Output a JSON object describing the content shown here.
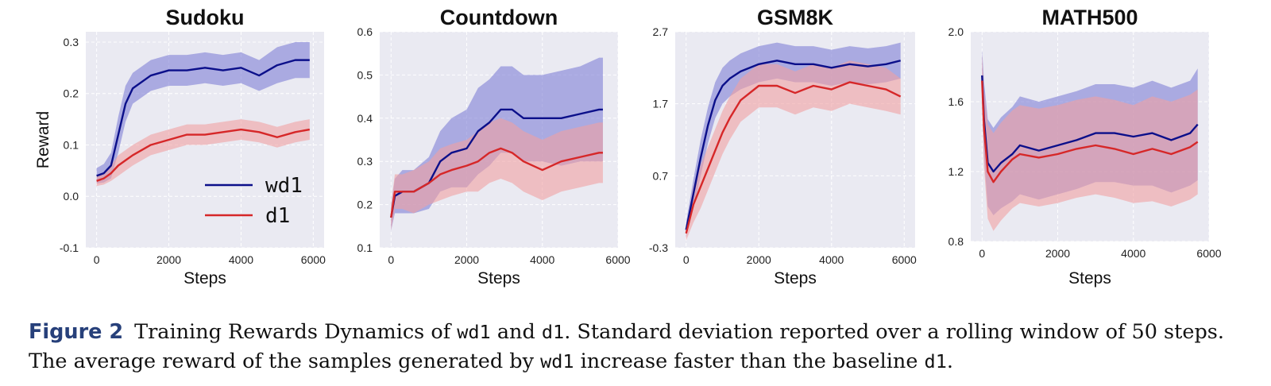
{
  "chart_data": [
    {
      "type": "line",
      "title": "Sudoku",
      "xlabel": "Steps",
      "ylabel": "Reward",
      "xlim": [
        -300,
        6300
      ],
      "ylim": [
        -0.1,
        0.32
      ],
      "xticks": [
        0,
        2000,
        4000,
        6000
      ],
      "xtick_labels": [
        "0",
        "2000",
        "4000",
        "6000"
      ],
      "yticks": [
        -0.1,
        0.0,
        0.1,
        0.2,
        0.3
      ],
      "ytick_labels": [
        "-0.1",
        "0.0",
        "0.1",
        "0.2",
        "0.3"
      ],
      "grid": true,
      "legend": {
        "position": "lower-right",
        "show": true
      },
      "series": [
        {
          "name": "wd1",
          "color": "#0b0f8a",
          "band_color": "#7f7fd6",
          "x": [
            0,
            200,
            400,
            600,
            800,
            1000,
            1500,
            2000,
            2500,
            3000,
            3500,
            4000,
            4500,
            5000,
            5500,
            5900
          ],
          "y": [
            0.04,
            0.045,
            0.06,
            0.12,
            0.18,
            0.21,
            0.235,
            0.245,
            0.245,
            0.25,
            0.245,
            0.25,
            0.235,
            0.255,
            0.265,
            0.265
          ],
          "std": [
            0.015,
            0.018,
            0.025,
            0.035,
            0.035,
            0.03,
            0.03,
            0.03,
            0.03,
            0.03,
            0.03,
            0.03,
            0.03,
            0.035,
            0.035,
            0.035
          ]
        },
        {
          "name": "d1",
          "color": "#d62728",
          "band_color": "#f0a0a2",
          "x": [
            0,
            200,
            400,
            600,
            800,
            1000,
            1500,
            2000,
            2500,
            3000,
            3500,
            4000,
            4500,
            5000,
            5500,
            5900
          ],
          "y": [
            0.03,
            0.035,
            0.045,
            0.06,
            0.07,
            0.08,
            0.1,
            0.11,
            0.12,
            0.12,
            0.125,
            0.13,
            0.125,
            0.115,
            0.125,
            0.13
          ],
          "std": [
            0.01,
            0.012,
            0.015,
            0.02,
            0.02,
            0.02,
            0.02,
            0.02,
            0.02,
            0.02,
            0.02,
            0.02,
            0.02,
            0.02,
            0.02,
            0.02
          ]
        }
      ]
    },
    {
      "type": "line",
      "title": "Countdown",
      "xlabel": "Steps",
      "ylabel": "",
      "xlim": [
        -300,
        6000
      ],
      "ylim": [
        0.1,
        0.6
      ],
      "xticks": [
        0,
        2000,
        4000,
        6000
      ],
      "xtick_labels": [
        "0",
        "2000",
        "4000",
        "6000"
      ],
      "yticks": [
        0.1,
        0.2,
        0.3,
        0.4,
        0.5,
        0.6
      ],
      "ytick_labels": [
        "0.1",
        "0.2",
        "0.3",
        "0.4",
        "0.5",
        "0.6"
      ],
      "grid": true,
      "legend": {
        "show": false
      },
      "series": [
        {
          "name": "wd1",
          "color": "#0b0f8a",
          "band_color": "#7f7fd6",
          "x": [
            0,
            100,
            300,
            600,
            1000,
            1300,
            1600,
            2000,
            2300,
            2600,
            2900,
            3200,
            3500,
            4000,
            4500,
            5000,
            5500,
            5600
          ],
          "y": [
            0.17,
            0.22,
            0.23,
            0.23,
            0.25,
            0.3,
            0.32,
            0.33,
            0.37,
            0.39,
            0.42,
            0.42,
            0.4,
            0.4,
            0.4,
            0.41,
            0.42,
            0.42
          ],
          "std": [
            0.03,
            0.04,
            0.05,
            0.05,
            0.06,
            0.07,
            0.08,
            0.09,
            0.1,
            0.1,
            0.1,
            0.1,
            0.1,
            0.1,
            0.11,
            0.11,
            0.12,
            0.12
          ]
        },
        {
          "name": "d1",
          "color": "#d62728",
          "band_color": "#f0a0a2",
          "x": [
            0,
            100,
            300,
            600,
            1000,
            1300,
            1600,
            2000,
            2300,
            2600,
            2900,
            3200,
            3500,
            4000,
            4500,
            5000,
            5500,
            5600
          ],
          "y": [
            0.17,
            0.23,
            0.23,
            0.23,
            0.25,
            0.27,
            0.28,
            0.29,
            0.3,
            0.32,
            0.33,
            0.32,
            0.3,
            0.28,
            0.3,
            0.31,
            0.32,
            0.32
          ],
          "std": [
            0.03,
            0.04,
            0.04,
            0.05,
            0.05,
            0.06,
            0.06,
            0.06,
            0.07,
            0.07,
            0.07,
            0.07,
            0.07,
            0.07,
            0.07,
            0.07,
            0.07,
            0.07
          ]
        }
      ]
    },
    {
      "type": "line",
      "title": "GSM8K",
      "xlabel": "Steps",
      "ylabel": "",
      "xlim": [
        -300,
        6300
      ],
      "ylim": [
        -0.3,
        2.7
      ],
      "xticks": [
        0,
        2000,
        4000,
        6000
      ],
      "xtick_labels": [
        "0",
        "2000",
        "4000",
        "6000"
      ],
      "yticks": [
        -0.3,
        0.7,
        1.7,
        2.7
      ],
      "ytick_labels": [
        "-0.3",
        "0.7",
        "1.7",
        "2.7"
      ],
      "grid": true,
      "legend": {
        "show": false
      },
      "series": [
        {
          "name": "wd1",
          "color": "#0b0f8a",
          "band_color": "#7f7fd6",
          "x": [
            0,
            200,
            400,
            600,
            800,
            1000,
            1200,
            1500,
            2000,
            2500,
            3000,
            3500,
            4000,
            4500,
            5000,
            5500,
            5900
          ],
          "y": [
            -0.05,
            0.45,
            0.95,
            1.4,
            1.75,
            1.95,
            2.05,
            2.15,
            2.25,
            2.3,
            2.25,
            2.25,
            2.2,
            2.25,
            2.22,
            2.25,
            2.3
          ],
          "std": [
            0.1,
            0.2,
            0.25,
            0.25,
            0.25,
            0.25,
            0.25,
            0.25,
            0.25,
            0.25,
            0.25,
            0.25,
            0.25,
            0.25,
            0.25,
            0.25,
            0.25
          ]
        },
        {
          "name": "d1",
          "color": "#d62728",
          "band_color": "#f0a0a2",
          "x": [
            0,
            200,
            400,
            600,
            800,
            1000,
            1200,
            1500,
            2000,
            2500,
            3000,
            3500,
            4000,
            4500,
            5000,
            5500,
            5900
          ],
          "y": [
            -0.1,
            0.3,
            0.55,
            0.8,
            1.05,
            1.3,
            1.5,
            1.75,
            1.95,
            1.95,
            1.85,
            1.95,
            1.9,
            2.0,
            1.95,
            1.9,
            1.8
          ],
          "std": [
            0.1,
            0.25,
            0.3,
            0.3,
            0.3,
            0.3,
            0.3,
            0.3,
            0.3,
            0.3,
            0.3,
            0.3,
            0.3,
            0.3,
            0.3,
            0.3,
            0.25
          ]
        }
      ]
    },
    {
      "type": "line",
      "title": "MATH500",
      "xlabel": "Steps",
      "ylabel": "",
      "xlim": [
        -300,
        6000
      ],
      "ylim": [
        0.8,
        2.0
      ],
      "xticks": [
        0,
        2000,
        4000,
        6000
      ],
      "xtick_labels": [
        "0",
        "2000",
        "4000",
        "6000"
      ],
      "yticks": [
        0.8,
        1.2,
        1.6,
        2.0
      ],
      "ytick_labels": [
        "0.8",
        "1.2",
        "1.6",
        "2.0"
      ],
      "grid": true,
      "legend": {
        "show": false
      },
      "series": [
        {
          "name": "wd1",
          "color": "#0b0f8a",
          "band_color": "#7f7fd6",
          "x": [
            0,
            50,
            150,
            300,
            500,
            800,
            1000,
            1500,
            2000,
            2500,
            3000,
            3500,
            4000,
            4500,
            5000,
            5500,
            5700
          ],
          "y": [
            1.75,
            1.5,
            1.25,
            1.2,
            1.25,
            1.3,
            1.35,
            1.32,
            1.35,
            1.38,
            1.42,
            1.42,
            1.4,
            1.42,
            1.38,
            1.42,
            1.47
          ],
          "std": [
            0.15,
            0.22,
            0.25,
            0.25,
            0.26,
            0.27,
            0.28,
            0.28,
            0.28,
            0.28,
            0.28,
            0.28,
            0.28,
            0.3,
            0.3,
            0.3,
            0.32
          ]
        },
        {
          "name": "d1",
          "color": "#d62728",
          "band_color": "#f0a0a2",
          "x": [
            0,
            50,
            150,
            300,
            500,
            800,
            1000,
            1500,
            2000,
            2500,
            3000,
            3500,
            4000,
            4500,
            5000,
            5500,
            5700
          ],
          "y": [
            1.72,
            1.45,
            1.2,
            1.14,
            1.2,
            1.27,
            1.3,
            1.28,
            1.3,
            1.33,
            1.35,
            1.33,
            1.3,
            1.33,
            1.3,
            1.34,
            1.37
          ],
          "std": [
            0.15,
            0.22,
            0.27,
            0.28,
            0.28,
            0.28,
            0.28,
            0.28,
            0.28,
            0.28,
            0.28,
            0.28,
            0.28,
            0.3,
            0.3,
            0.3,
            0.3
          ]
        }
      ]
    }
  ],
  "caption": {
    "label": "Figure 2",
    "parts": [
      "Training Rewards Dynamics of ",
      "wd1",
      " and ",
      "d1",
      ". Standard deviation reported over a rolling window of 50 steps. The average reward of the samples generated by ",
      "wd1",
      " increase faster than the baseline ",
      "d1",
      "."
    ]
  }
}
